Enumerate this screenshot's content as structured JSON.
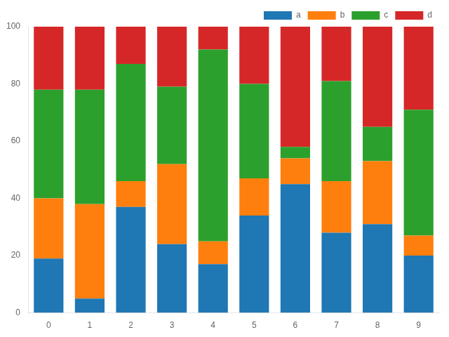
{
  "chart_data": {
    "type": "bar",
    "stacked": true,
    "categories": [
      "0",
      "1",
      "2",
      "3",
      "4",
      "5",
      "6",
      "7",
      "8",
      "9"
    ],
    "series": [
      {
        "name": "a",
        "color": "#1f77b4",
        "values": [
          19,
          5,
          37,
          24,
          17,
          34,
          45,
          28,
          31,
          20
        ]
      },
      {
        "name": "b",
        "color": "#ff7f0e",
        "values": [
          21,
          33,
          9,
          28,
          8,
          13,
          9,
          18,
          22,
          7
        ]
      },
      {
        "name": "c",
        "color": "#2ca02c",
        "values": [
          38,
          40,
          41,
          27,
          67,
          33,
          4,
          35,
          12,
          44
        ]
      },
      {
        "name": "d",
        "color": "#d62728",
        "values": [
          22,
          22,
          13,
          21,
          8,
          20,
          42,
          19,
          35,
          29
        ]
      }
    ],
    "ylim": [
      0,
      100
    ],
    "yticks": [
      0,
      20,
      40,
      60,
      80,
      100
    ],
    "grid": false,
    "legend": "upper right"
  }
}
